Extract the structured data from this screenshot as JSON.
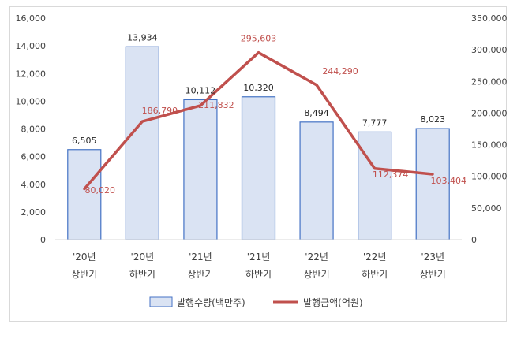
{
  "chart_data": {
    "type": "bar",
    "categories": [
      [
        "'20년",
        "상반기"
      ],
      [
        "'20년",
        "하반기"
      ],
      [
        "'21년",
        "상반기"
      ],
      [
        "'21년",
        "하반기"
      ],
      [
        "'22년",
        "상반기"
      ],
      [
        "'22년",
        "하반기"
      ],
      [
        "'23년",
        "상반기"
      ]
    ],
    "series": [
      {
        "name": "발행수량(백만주)",
        "type": "bar",
        "axis": "left",
        "values": [
          6505,
          13934,
          10112,
          10320,
          8494,
          7777,
          8023
        ],
        "labels": [
          "6,505",
          "13,934",
          "10,112",
          "10,320",
          "8,494",
          "7,777",
          "8,023"
        ],
        "color": "#dae3f3",
        "border_color": "#4472c4"
      },
      {
        "name": "발행금액(억원)",
        "type": "line",
        "axis": "right",
        "values": [
          80020,
          186790,
          211832,
          295603,
          244290,
          112374,
          103404
        ],
        "labels": [
          "80,020",
          "186,790",
          "211,832",
          "295,603",
          "244,290",
          "112,374",
          "103,404"
        ],
        "color": "#c0504d"
      }
    ],
    "y_left": {
      "ylim": [
        0,
        16000
      ],
      "ticks": [
        "0",
        "2,000",
        "4,000",
        "6,000",
        "8,000",
        "10,000",
        "12,000",
        "14,000",
        "16,000"
      ]
    },
    "y_right": {
      "ylim": [
        0,
        350000
      ],
      "ticks": [
        "0",
        "50,000",
        "100,000",
        "150,000",
        "200,000",
        "250,000",
        "300,000",
        "350,000"
      ]
    },
    "grid": false,
    "legend_position": "bottom"
  }
}
